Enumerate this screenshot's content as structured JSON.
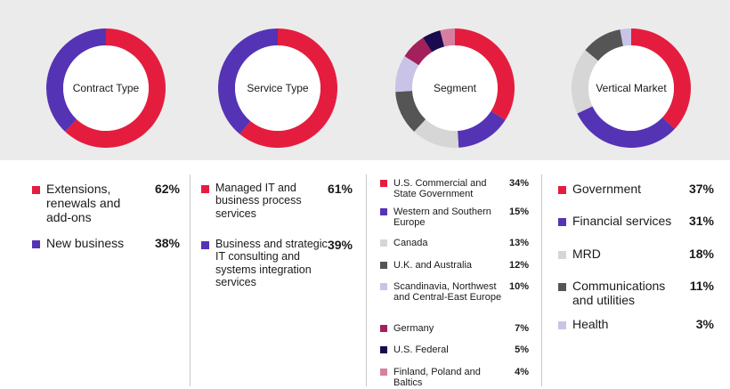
{
  "colors": {
    "red": "#e41d3e",
    "purple": "#5533b5",
    "light_gray": "#d6d6d6",
    "dark_gray": "#555555",
    "lavender": "#c9c3e8",
    "magenta": "#a3205c",
    "navy": "#1b0a4d",
    "pink": "#d77fa0"
  },
  "chart_data": [
    {
      "type": "pie",
      "title": "Contract Type",
      "series": [
        {
          "name": "Extensions, renewals and add-ons",
          "value": 62,
          "label": "62%",
          "color": "#e41d3e"
        },
        {
          "name": "New business",
          "value": 38,
          "label": "38%",
          "color": "#5533b5"
        }
      ]
    },
    {
      "type": "pie",
      "title": "Service Type",
      "series": [
        {
          "name": "Managed IT and business process services",
          "value": 61,
          "label": "61%",
          "color": "#e41d3e"
        },
        {
          "name": "Business and strategic IT consulting and systems integration services",
          "value": 39,
          "label": "39%",
          "color": "#5533b5"
        }
      ]
    },
    {
      "type": "pie",
      "title": "Segment",
      "series": [
        {
          "name": "U.S. Commercial and State Government",
          "value": 34,
          "label": "34%",
          "color": "#e41d3e"
        },
        {
          "name": "Western and Southern Europe",
          "value": 15,
          "label": "15%",
          "color": "#5533b5"
        },
        {
          "name": "Canada",
          "value": 13,
          "label": "13%",
          "color": "#d6d6d6"
        },
        {
          "name": "U.K. and Australia",
          "value": 12,
          "label": "12%",
          "color": "#555555"
        },
        {
          "name": "Scandinavia, Northwest and Central-East Europe",
          "value": 10,
          "label": "10%",
          "color": "#c9c3e8"
        },
        {
          "name": "Germany",
          "value": 7,
          "label": "7%",
          "color": "#a3205c"
        },
        {
          "name": "U.S. Federal",
          "value": 5,
          "label": "5%",
          "color": "#1b0a4d"
        },
        {
          "name": "Finland, Poland and Baltics",
          "value": 4,
          "label": "4%",
          "color": "#d77fa0"
        }
      ]
    },
    {
      "type": "pie",
      "title": "Vertical Market",
      "series": [
        {
          "name": "Government",
          "value": 37,
          "label": "37%",
          "color": "#e41d3e"
        },
        {
          "name": "Financial services",
          "value": 31,
          "label": "31%",
          "color": "#5533b5"
        },
        {
          "name": "MRD",
          "value": 18,
          "label": "18%",
          "color": "#d6d6d6"
        },
        {
          "name": "Communications and utilities",
          "value": 11,
          "label": "11%",
          "color": "#555555"
        },
        {
          "name": "Health",
          "value": 3,
          "label": "3%",
          "color": "#c9c3e8"
        }
      ]
    }
  ]
}
